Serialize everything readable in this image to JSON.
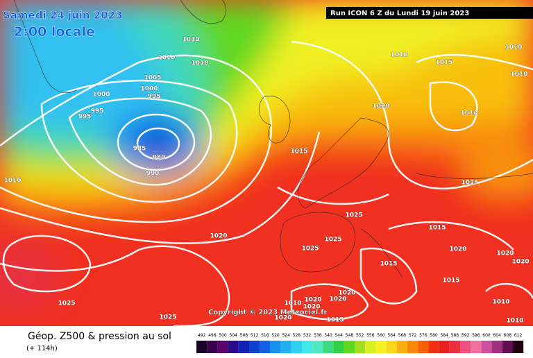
{
  "header": {
    "date": "Samedi 24 juin 2023",
    "time": "2:00 locale",
    "run": "Run ICON 6 Z du Lundi 19 juin 2023"
  },
  "map": {
    "copyright": "Copyright © 2023 Meteociel.fr",
    "isobar_labels": [
      1010,
      1010,
      1010,
      1005,
      1000,
      1000,
      995,
      995,
      995,
      985,
      980,
      990,
      1010,
      1020,
      1025,
      1025,
      1010,
      1015,
      1010,
      1010,
      1020,
      1010,
      1015,
      1015,
      1025,
      1025,
      1025,
      1015,
      1020,
      1020,
      1020,
      1015,
      1015,
      1020,
      1020,
      1020,
      1020,
      1010,
      1010,
      1015,
      1020,
      1010
    ]
  },
  "footer": {
    "title": "Géop. Z500 & pression au sol",
    "lead": "(+ 114h)"
  },
  "legend": {
    "values": [
      492,
      496,
      500,
      504,
      508,
      512,
      516,
      520,
      524,
      528,
      532,
      536,
      540,
      544,
      548,
      552,
      556,
      560,
      564,
      568,
      572,
      576,
      580,
      584,
      588,
      592,
      596,
      600,
      604,
      608,
      612
    ],
    "colors": [
      "#1a0026",
      "#3a004a",
      "#5a006a",
      "#2a0a8a",
      "#1020b0",
      "#1040d0",
      "#1060e8",
      "#1890f0",
      "#20b0f0",
      "#30d0f0",
      "#40e8e8",
      "#50e8c0",
      "#40d880",
      "#30d040",
      "#60d820",
      "#a0e020",
      "#d8f020",
      "#f8f020",
      "#f8d818",
      "#f8b010",
      "#f88808",
      "#f86008",
      "#f03010",
      "#e82020",
      "#e83040",
      "#f05080",
      "#f070a0",
      "#d050a0",
      "#a03080",
      "#601050",
      "#200010"
    ]
  }
}
